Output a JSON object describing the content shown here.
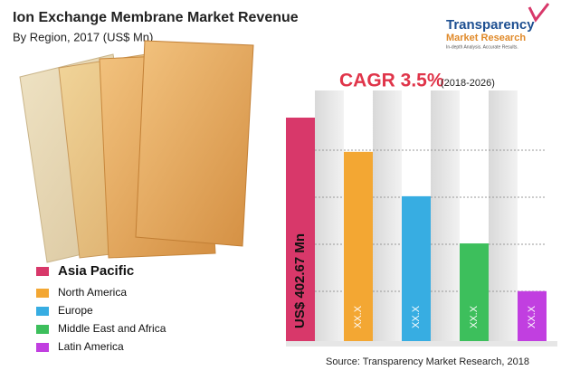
{
  "chart_data": {
    "type": "bar",
    "title": "Ion Exchange Membrane Market Revenue",
    "subtitle": "By Region, 2017 (US$ Mn)",
    "annotation": "CAGR 3.5%",
    "annotation_note": "(2018-2026)",
    "source": "Source: Transparency Market Research, 2018",
    "categories": [
      "Asia Pacific",
      "North America",
      "Europe",
      "Middle East and Africa",
      "Latin America"
    ],
    "values": [
      402.67,
      341,
      261,
      176,
      90
    ],
    "value_labels": [
      "US$ 402.67 Mn",
      "XX.X",
      "XX.X",
      "XX.X",
      "XX.X"
    ],
    "colors": [
      "#d8386a",
      "#f3a733",
      "#37ade2",
      "#3dbf5c",
      "#c13fe0"
    ]
  },
  "logo": {
    "name": "Transparency",
    "subname": "Market Research",
    "tagline": "In-depth Analysis. Accurate Results."
  }
}
